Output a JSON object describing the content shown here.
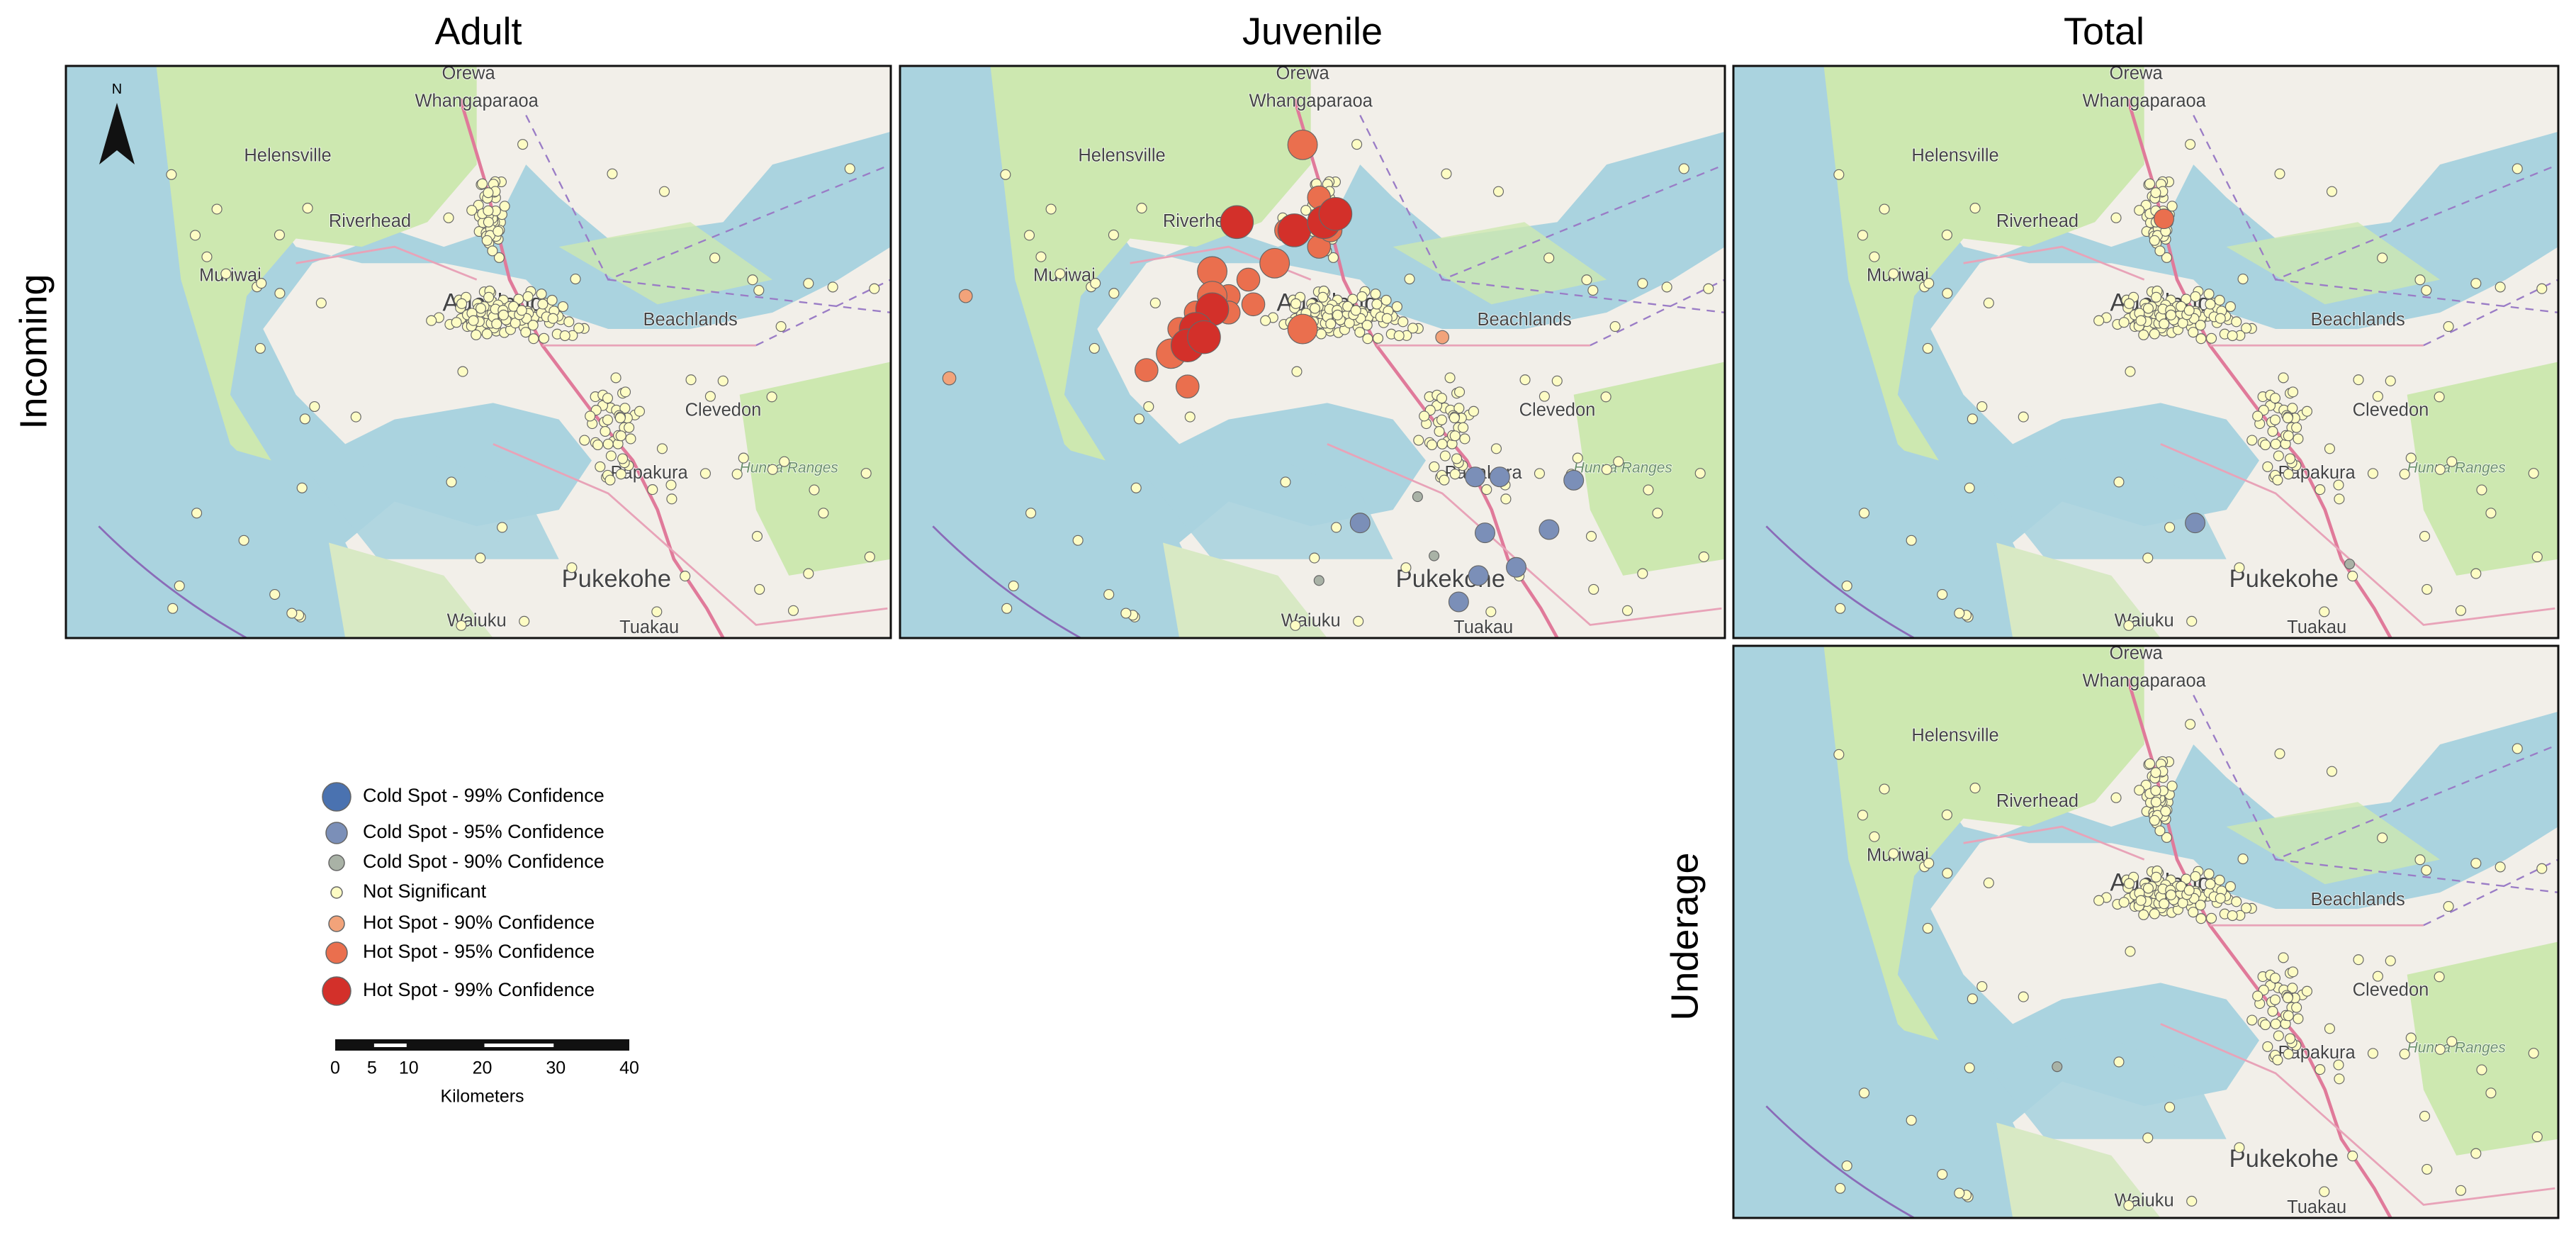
{
  "figure": {
    "column_titles": [
      "Adult",
      "Juvenile",
      "Total"
    ],
    "row_labels": [
      "Incoming",
      "Underage"
    ],
    "north_label": "N",
    "map_labels": [
      "Orewa",
      "Whangaparaoa",
      "Helensville",
      "Riverhead",
      "Muriwai",
      "Auckland",
      "Beachlands",
      "Clevedon",
      "Hunua Ranges",
      "Papakura",
      "Pukekohe",
      "Waiuku",
      "Tuakau"
    ],
    "legend": [
      {
        "label": "Cold Spot - 99% Confidence",
        "color": "#4a72b0"
      },
      {
        "label": "Cold Spot - 95% Confidence",
        "color": "#7b8fb8"
      },
      {
        "label": "Cold Spot - 90% Confidence",
        "color": "#a9b2a6"
      },
      {
        "label": "Not Significant",
        "color": "#fdfcc4"
      },
      {
        "label": "Hot Spot - 90% Confidence",
        "color": "#f2a37a"
      },
      {
        "label": "Hot Spot - 95% Confidence",
        "color": "#ea6f4e"
      },
      {
        "label": "Hot Spot - 99% Confidence",
        "color": "#d3302a"
      }
    ],
    "scale_bar": {
      "ticks": [
        0,
        5,
        10,
        20,
        30,
        40
      ],
      "unit": "Kilometers"
    }
  }
}
